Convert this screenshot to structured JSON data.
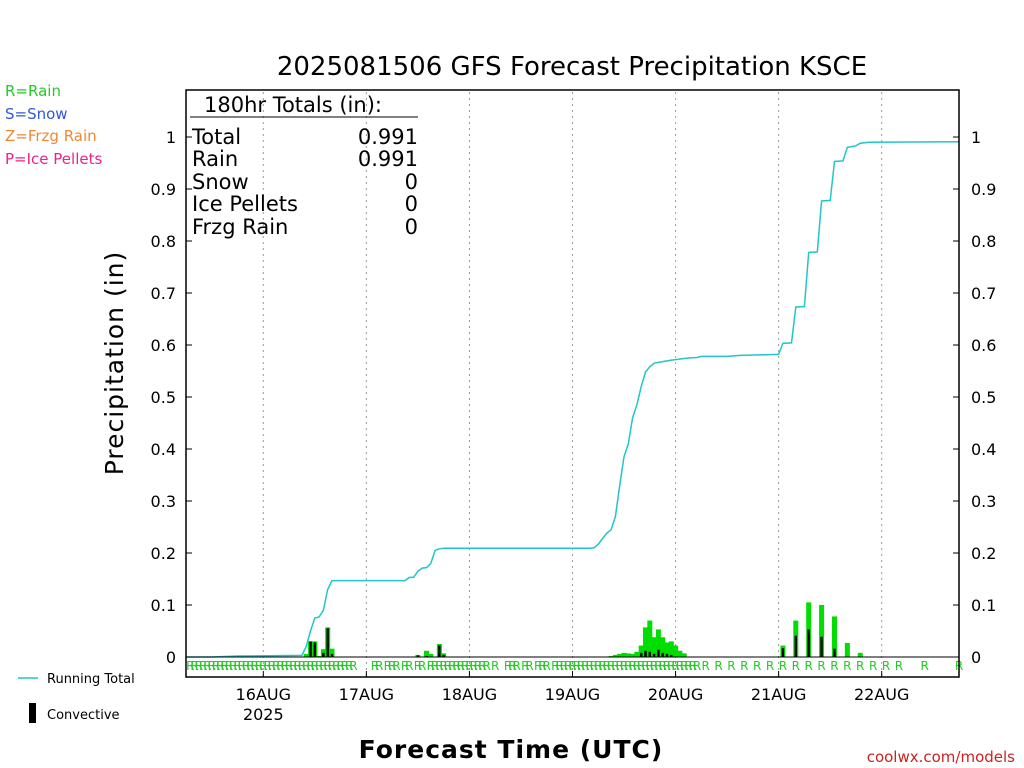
{
  "title": "2025081506 GFS Forecast Precipitation KSCE",
  "ylabel": "Precipitation (in)",
  "xlabel": "Forecast Time (UTC)",
  "credit": "coolwx.com/models",
  "legend_types": [
    {
      "label": "R=Rain",
      "color": "#22cc22"
    },
    {
      "label": "S=Snow",
      "color": "#3355dd"
    },
    {
      "label": "Z=Frzg Rain",
      "color": "#ee8833"
    },
    {
      "label": "P=Ice Pellets",
      "color": "#ee2288"
    }
  ],
  "legend_series": {
    "running_total": "Running Total",
    "convective": "Convective"
  },
  "totals": {
    "header": "180hr Totals (in):",
    "rows": [
      {
        "label": "Total",
        "value": "0.991"
      },
      {
        "label": "Rain",
        "value": "0.991"
      },
      {
        "label": "Snow",
        "value": "0"
      },
      {
        "label": "Ice Pellets",
        "value": "0"
      },
      {
        "label": "Frzg Rain",
        "value": "0"
      }
    ]
  },
  "colors": {
    "running_total": "#22c5c8",
    "rain_bar": "#00dd00",
    "convective": "#000000",
    "grid": "#999999"
  },
  "chart_data": {
    "type": "bar",
    "x_unit": "forecast hour",
    "x_range": [
      0,
      180
    ],
    "ylim": [
      0,
      1
    ],
    "y_ticks": [
      "0",
      "0.1",
      "0.2",
      "0.3",
      "0.4",
      "0.5",
      "0.6",
      "0.7",
      "0.8",
      "0.9",
      "1"
    ],
    "x_ticks": [
      {
        "hour": 18,
        "label": "16AUG",
        "sub": "2025"
      },
      {
        "hour": 42,
        "label": "17AUG",
        "sub": ""
      },
      {
        "hour": 66,
        "label": "18AUG",
        "sub": ""
      },
      {
        "hour": 90,
        "label": "19AUG",
        "sub": ""
      },
      {
        "hour": 114,
        "label": "20AUG",
        "sub": ""
      },
      {
        "hour": 138,
        "label": "21AUG",
        "sub": ""
      },
      {
        "hour": 162,
        "label": "22AUG",
        "sub": ""
      }
    ],
    "running_total": [
      [
        0,
        0
      ],
      [
        6,
        0
      ],
      [
        12,
        0.002
      ],
      [
        27,
        0.003
      ],
      [
        28,
        0.02
      ],
      [
        29,
        0.05
      ],
      [
        30,
        0.075
      ],
      [
        31,
        0.077
      ],
      [
        32,
        0.09
      ],
      [
        33,
        0.13
      ],
      [
        34,
        0.147
      ],
      [
        51,
        0.147
      ],
      [
        52,
        0.153
      ],
      [
        53,
        0.153
      ],
      [
        54,
        0.165
      ],
      [
        55,
        0.171
      ],
      [
        56,
        0.172
      ],
      [
        57,
        0.18
      ],
      [
        58,
        0.205
      ],
      [
        59,
        0.208
      ],
      [
        60,
        0.209
      ],
      [
        94,
        0.209
      ],
      [
        95,
        0.21
      ],
      [
        96,
        0.217
      ],
      [
        97,
        0.228
      ],
      [
        98,
        0.238
      ],
      [
        99,
        0.245
      ],
      [
        100,
        0.27
      ],
      [
        101,
        0.33
      ],
      [
        102,
        0.385
      ],
      [
        103,
        0.41
      ],
      [
        104,
        0.46
      ],
      [
        105,
        0.485
      ],
      [
        106,
        0.52
      ],
      [
        107,
        0.548
      ],
      [
        108,
        0.558
      ],
      [
        109,
        0.565
      ],
      [
        111,
        0.568
      ],
      [
        113,
        0.571
      ],
      [
        114,
        0.572
      ],
      [
        115,
        0.573
      ],
      [
        117,
        0.575
      ],
      [
        119,
        0.576
      ],
      [
        120,
        0.578
      ],
      [
        126,
        0.578
      ],
      [
        129,
        0.58
      ],
      [
        138,
        0.582
      ],
      [
        139,
        0.603
      ],
      [
        141,
        0.604
      ],
      [
        142,
        0.673
      ],
      [
        144,
        0.674
      ],
      [
        145,
        0.778
      ],
      [
        147,
        0.779
      ],
      [
        148,
        0.877
      ],
      [
        150,
        0.878
      ],
      [
        151,
        0.953
      ],
      [
        153,
        0.954
      ],
      [
        154,
        0.98
      ],
      [
        156,
        0.983
      ],
      [
        157,
        0.988
      ],
      [
        159,
        0.99
      ],
      [
        180,
        0.991
      ]
    ],
    "series": [
      {
        "name": "Rain",
        "values": [
          [
            28,
            0.006
          ],
          [
            29,
            0.03
          ],
          [
            30,
            0.03
          ],
          [
            31,
            0.002
          ],
          [
            32,
            0.015
          ],
          [
            33,
            0.057
          ],
          [
            34,
            0.016
          ],
          [
            54,
            0.004
          ],
          [
            56,
            0.012
          ],
          [
            57,
            0.006
          ],
          [
            59,
            0.025
          ],
          [
            60,
            0.007
          ],
          [
            99,
            0.002
          ],
          [
            100,
            0.004
          ],
          [
            101,
            0.006
          ],
          [
            102,
            0.008
          ],
          [
            103,
            0.007
          ],
          [
            104,
            0.006
          ],
          [
            105,
            0.01
          ],
          [
            106,
            0.022
          ],
          [
            107,
            0.057
          ],
          [
            108,
            0.07
          ],
          [
            109,
            0.038
          ],
          [
            110,
            0.053
          ],
          [
            111,
            0.038
          ],
          [
            112,
            0.028
          ],
          [
            113,
            0.03
          ],
          [
            114,
            0.022
          ],
          [
            115,
            0.012
          ],
          [
            116,
            0.007
          ],
          [
            139,
            0.022
          ],
          [
            142,
            0.07
          ],
          [
            145,
            0.105
          ],
          [
            148,
            0.1
          ],
          [
            151,
            0.078
          ],
          [
            154,
            0.027
          ],
          [
            157,
            0.008
          ]
        ]
      },
      {
        "name": "Convective",
        "values": [
          [
            29,
            0.03
          ],
          [
            30,
            0.028
          ],
          [
            32,
            0.008
          ],
          [
            33,
            0.055
          ],
          [
            34,
            0.006
          ],
          [
            54,
            0.003
          ],
          [
            56,
            0.002
          ],
          [
            59,
            0.022
          ],
          [
            60,
            0.004
          ],
          [
            106,
            0.008
          ],
          [
            107,
            0.012
          ],
          [
            108,
            0.01
          ],
          [
            109,
            0.006
          ],
          [
            110,
            0.014
          ],
          [
            111,
            0.008
          ],
          [
            112,
            0.006
          ],
          [
            113,
            0.004
          ],
          [
            139,
            0.017
          ],
          [
            142,
            0.041
          ],
          [
            145,
            0.053
          ],
          [
            148,
            0.039
          ],
          [
            151,
            0.016
          ]
        ]
      }
    ],
    "type_marks": {
      "symbol": "R",
      "hours": [
        1,
        2,
        3,
        4,
        5,
        6,
        7,
        8,
        9,
        10,
        11,
        12,
        13,
        14,
        15,
        16,
        17,
        18,
        19,
        20,
        21,
        22,
        23,
        24,
        25,
        26,
        27,
        28,
        29,
        30,
        31,
        32,
        33,
        34,
        35,
        36,
        37,
        38,
        39,
        44,
        45,
        47,
        48,
        49,
        51,
        52,
        54,
        55,
        57,
        58,
        59,
        60,
        61,
        62,
        63,
        64,
        65,
        66,
        67,
        68,
        69,
        70,
        72,
        75,
        76,
        77,
        79,
        80,
        82,
        83,
        84,
        86,
        87,
        88,
        89,
        90,
        91,
        92,
        93,
        94,
        95,
        96,
        97,
        98,
        99,
        100,
        101,
        102,
        103,
        104,
        105,
        106,
        107,
        108,
        109,
        110,
        111,
        112,
        113,
        114,
        115,
        116,
        117,
        118,
        119,
        121,
        124,
        127,
        130,
        133,
        136,
        139,
        142,
        145,
        148,
        151,
        154,
        157,
        160,
        163,
        166,
        172,
        180
      ]
    }
  }
}
